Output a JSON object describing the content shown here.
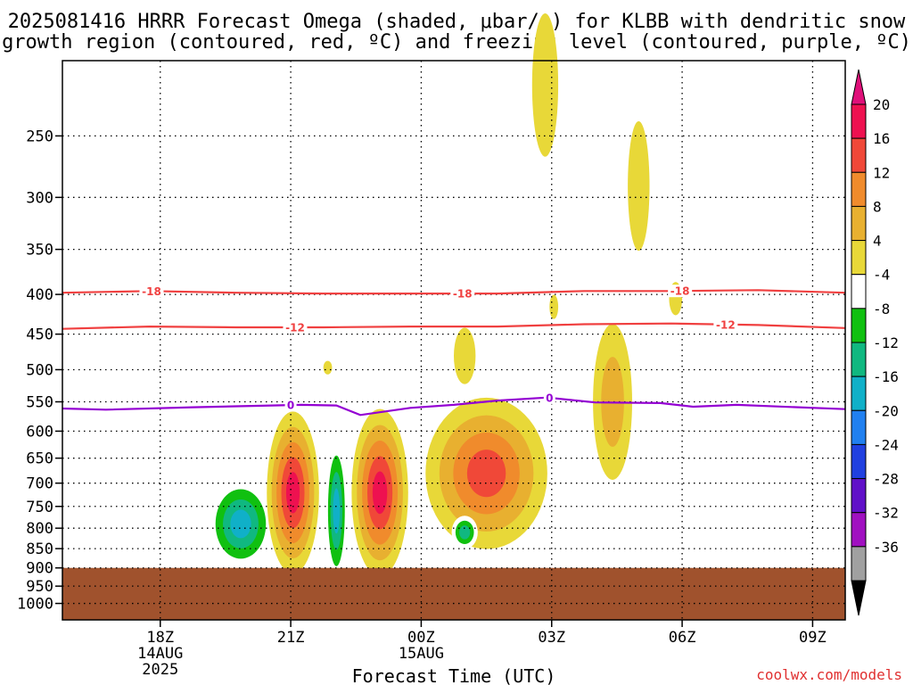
{
  "title_line1": "2025081416 HRRR Forecast Omega (shaded, μbar/s) for KLBB with dendritic snow",
  "title_line2": "growth region (contoured, red, ºC) and freezing level (contoured, purple, ºC)",
  "xlabel": "Forecast Time (UTC)",
  "credit": "coolwx.com/models",
  "colors": {
    "ground": "#a0522d",
    "dgz_contour": "#f04040",
    "freezing_contour": "#9400d3",
    "credit": "#e03030"
  },
  "chart_data": {
    "type": "heatmap",
    "x_axis": {
      "range_hours_utc": [
        "2025-08-14 16Z",
        "2025-08-15 10Z"
      ],
      "ticks": [
        {
          "hour": 18,
          "label": "18Z",
          "sub1": "14AUG",
          "sub2": "2025"
        },
        {
          "hour": 21,
          "label": "21Z",
          "sub1": "",
          "sub2": ""
        },
        {
          "hour": 24,
          "label": "00Z",
          "sub1": "15AUG",
          "sub2": ""
        },
        {
          "hour": 27,
          "label": "03Z",
          "sub1": "",
          "sub2": ""
        },
        {
          "hour": 30,
          "label": "06Z",
          "sub1": "",
          "sub2": ""
        },
        {
          "hour": 33,
          "label": "09Z",
          "sub1": "",
          "sub2": ""
        }
      ],
      "hour_range": [
        15.75,
        33.75
      ]
    },
    "y_axis": {
      "unit": "hPa",
      "scale": "log",
      "range": [
        200,
        1050
      ],
      "ticks": [
        250,
        300,
        350,
        400,
        450,
        500,
        550,
        600,
        650,
        700,
        750,
        800,
        850,
        900,
        950,
        1000
      ],
      "grid": true
    },
    "ground_level_hPa": 900,
    "colorbar": {
      "labels": [
        "20",
        "16",
        "12",
        "8",
        "4",
        "-4",
        "-8",
        "-12",
        "-16",
        "-20",
        "-24",
        "-28",
        "-32",
        "-36"
      ],
      "colors": [
        "#ee1150",
        "#f04838",
        "#f08b2c",
        "#e8b030",
        "#e8d838",
        "#ffffff",
        "#10c010",
        "#10b880",
        "#10b0c8",
        "#2080f0",
        "#2040e0",
        "#6010c8",
        "#a010c0",
        "#a0a0a0"
      ],
      "top_arrow_color": "#e0107a",
      "bottom_arrow_color": "#000000"
    },
    "contours": [
      {
        "name": "-18",
        "color": "dgz",
        "label": "-18",
        "points": [
          [
            15.75,
            398
          ],
          [
            17.75,
            396
          ],
          [
            19.75,
            398
          ],
          [
            21.75,
            399
          ],
          [
            23.75,
            399
          ],
          [
            25.75,
            399
          ],
          [
            27.75,
            396
          ],
          [
            29.75,
            396
          ],
          [
            31.75,
            395
          ],
          [
            33.75,
            398
          ]
        ],
        "label_hours": [
          17.8,
          24.95,
          29.95
        ]
      },
      {
        "name": "-12",
        "color": "dgz",
        "label": "-12",
        "points": [
          [
            15.75,
            443
          ],
          [
            17.75,
            440
          ],
          [
            19.75,
            441
          ],
          [
            21.75,
            441
          ],
          [
            23.75,
            440
          ],
          [
            25.75,
            440
          ],
          [
            27.75,
            437
          ],
          [
            29.75,
            436
          ],
          [
            31.75,
            438
          ],
          [
            33.75,
            442
          ]
        ],
        "label_hours": [
          21.1,
          31.0
        ]
      },
      {
        "name": "0",
        "color": "freezing",
        "label": "0",
        "points": [
          [
            15.75,
            561
          ],
          [
            16.75,
            563
          ],
          [
            18.75,
            559
          ],
          [
            21.25,
            555
          ],
          [
            22.05,
            556
          ],
          [
            22.6,
            572
          ],
          [
            23.75,
            560
          ],
          [
            24.75,
            555
          ],
          [
            25.75,
            548
          ],
          [
            26.9,
            543
          ],
          [
            28.0,
            551
          ],
          [
            29.5,
            552
          ],
          [
            30.25,
            558
          ],
          [
            31.25,
            555
          ],
          [
            33.75,
            562
          ]
        ],
        "label_hours": [
          21.0,
          26.95
        ]
      }
    ],
    "features": [
      {
        "center": [
          19.85,
          790
        ],
        "rx": 0.75,
        "ry_hPa": 105,
        "levels": [
          -4,
          -8,
          -12,
          -16
        ],
        "note": "downward-motion cell"
      },
      {
        "center": [
          21.05,
          720
        ],
        "rx": 0.6,
        "ry_hPa": 170,
        "levels": [
          4,
          8,
          12,
          16,
          20
        ]
      },
      {
        "center": [
          22.05,
          760
        ],
        "rx": 0.25,
        "ry_hPa": 160,
        "levels": [
          -4,
          -8,
          -12,
          -16
        ]
      },
      {
        "center": [
          23.05,
          720
        ],
        "rx": 0.65,
        "ry_hPa": 175,
        "levels": [
          4,
          8,
          12,
          16,
          20
        ]
      },
      {
        "center": [
          25.5,
          680
        ],
        "rx": 1.4,
        "ry_hPa": 150,
        "levels": [
          4,
          8,
          12,
          16
        ]
      },
      {
        "center": [
          25.0,
          810
        ],
        "rx": 0.3,
        "ry_hPa": 40,
        "levels": [
          -4,
          -8,
          -12
        ]
      },
      {
        "center": [
          28.4,
          550
        ],
        "rx": 0.45,
        "ry_hPa": 125,
        "levels": [
          4,
          8
        ]
      },
      {
        "center": [
          28.85,
          815
        ],
        "rx": 0.5,
        "ry_hPa": 45,
        "levels": [
          -4
        ]
      },
      {
        "center": [
          29.85,
          745
        ],
        "rx": 0.45,
        "ry_hPa": 90,
        "levels": [
          -4
        ]
      },
      {
        "center": [
          31.2,
          470
        ],
        "rx": 1.2,
        "ry_hPa": 60,
        "levels": [
          -4
        ]
      },
      {
        "center": [
          24.05,
          265
        ],
        "rx": 0.7,
        "ry_hPa": 70,
        "levels": [
          -4
        ]
      },
      {
        "center": [
          27.15,
          285
        ],
        "rx": 0.2,
        "ry_hPa": 35,
        "levels": [
          -4
        ]
      },
      {
        "center": [
          26.85,
          215
        ],
        "rx": 0.3,
        "ry_hPa": 45,
        "levels": [
          4
        ]
      },
      {
        "center": [
          29.0,
          290
        ],
        "rx": 0.25,
        "ry_hPa": 55,
        "levels": [
          4
        ]
      },
      {
        "center": [
          25.0,
          480
        ],
        "rx": 0.25,
        "ry_hPa": 40,
        "levels": [
          4
        ]
      },
      {
        "center": [
          21.85,
          497
        ],
        "rx": 0.1,
        "ry_hPa": 10,
        "levels": [
          4
        ]
      },
      {
        "center": [
          27.05,
          415
        ],
        "rx": 0.1,
        "ry_hPa": 15,
        "levels": [
          4
        ]
      },
      {
        "center": [
          29.85,
          405
        ],
        "rx": 0.15,
        "ry_hPa": 20,
        "levels": [
          4
        ]
      }
    ]
  }
}
